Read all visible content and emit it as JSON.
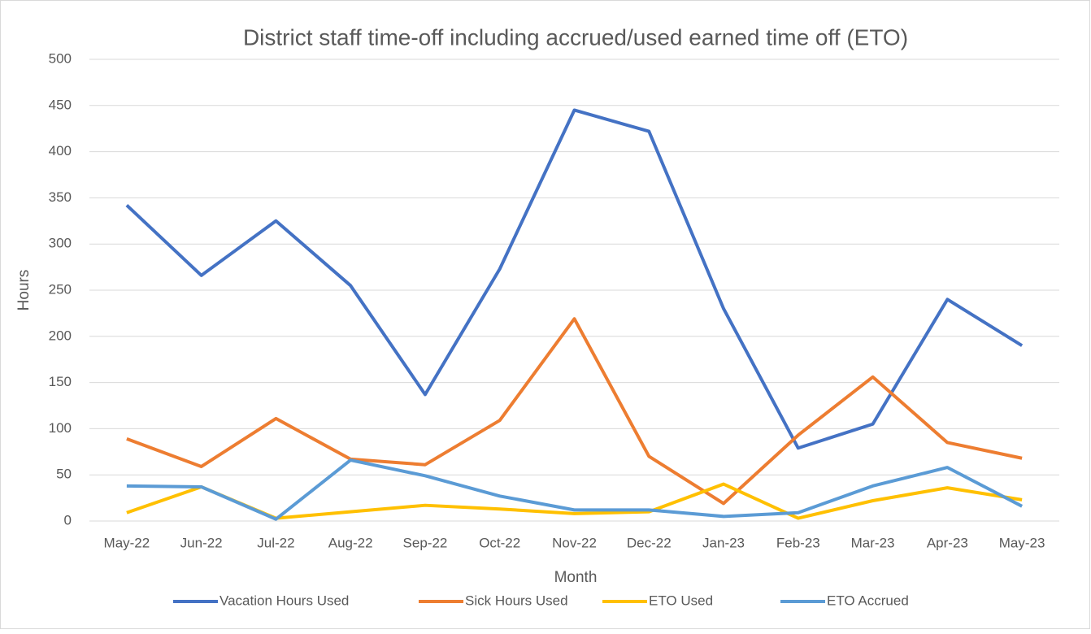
{
  "chart_data": {
    "type": "line",
    "title": "District staff time-off including accrued/used earned time off (ETO)",
    "x_label": "Month",
    "y_label": "Hours",
    "categories": [
      "May-22",
      "Jun-22",
      "Jul-22",
      "Aug-22",
      "Sep-22",
      "Oct-22",
      "Nov-22",
      "Dec-22",
      "Jan-23",
      "Feb-23",
      "Mar-23",
      "Apr-23",
      "May-23"
    ],
    "series": [
      {
        "name": "Vacation Hours Used",
        "color": "#4472c4",
        "values": [
          342,
          266,
          325,
          255,
          137,
          273,
          445,
          422,
          230,
          79,
          105,
          240,
          190
        ]
      },
      {
        "name": "Sick Hours Used",
        "color": "#ed7d31",
        "values": [
          89,
          59,
          111,
          67,
          61,
          109,
          219,
          70,
          19,
          93,
          156,
          85,
          68
        ]
      },
      {
        "name": "ETO Used",
        "color": "#ffc000",
        "values": [
          9,
          37,
          3,
          10,
          17,
          13,
          8,
          10,
          40,
          3,
          22,
          36,
          23
        ]
      },
      {
        "name": "ETO Accrued",
        "color": "#5b9bd5",
        "values": [
          38,
          37,
          2,
          66,
          49,
          27,
          12,
          12,
          5,
          9,
          38,
          58,
          16
        ]
      }
    ],
    "ylim": [
      0,
      500
    ],
    "yticks": [
      0,
      50,
      100,
      150,
      200,
      250,
      300,
      350,
      400,
      450,
      500
    ],
    "grid": true,
    "legend": "bottom"
  }
}
